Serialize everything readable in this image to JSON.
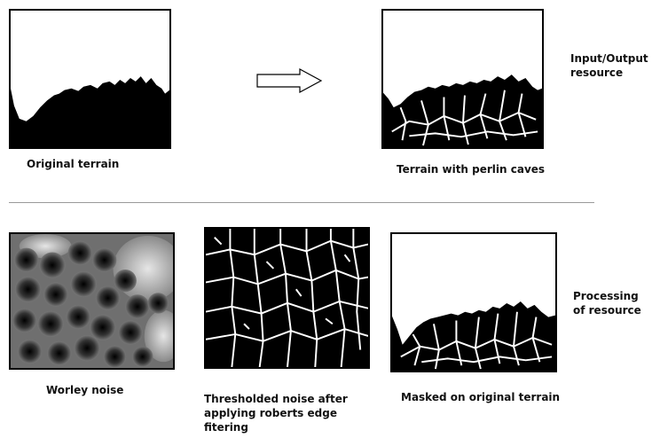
{
  "top": {
    "original_caption": "Original terrain",
    "output_caption": "Terrain with perlin caves",
    "side_label": "Input/Output resource"
  },
  "bottom": {
    "worley_caption": "Worley noise",
    "threshold_caption": "Thresholded noise after applying roberts edge fitering",
    "masked_caption": "Masked on original terrain",
    "side_label": "Processing of resource"
  },
  "colors": {
    "ink": "#000000",
    "background": "#ffffff",
    "divider": "#9a9a9a"
  }
}
